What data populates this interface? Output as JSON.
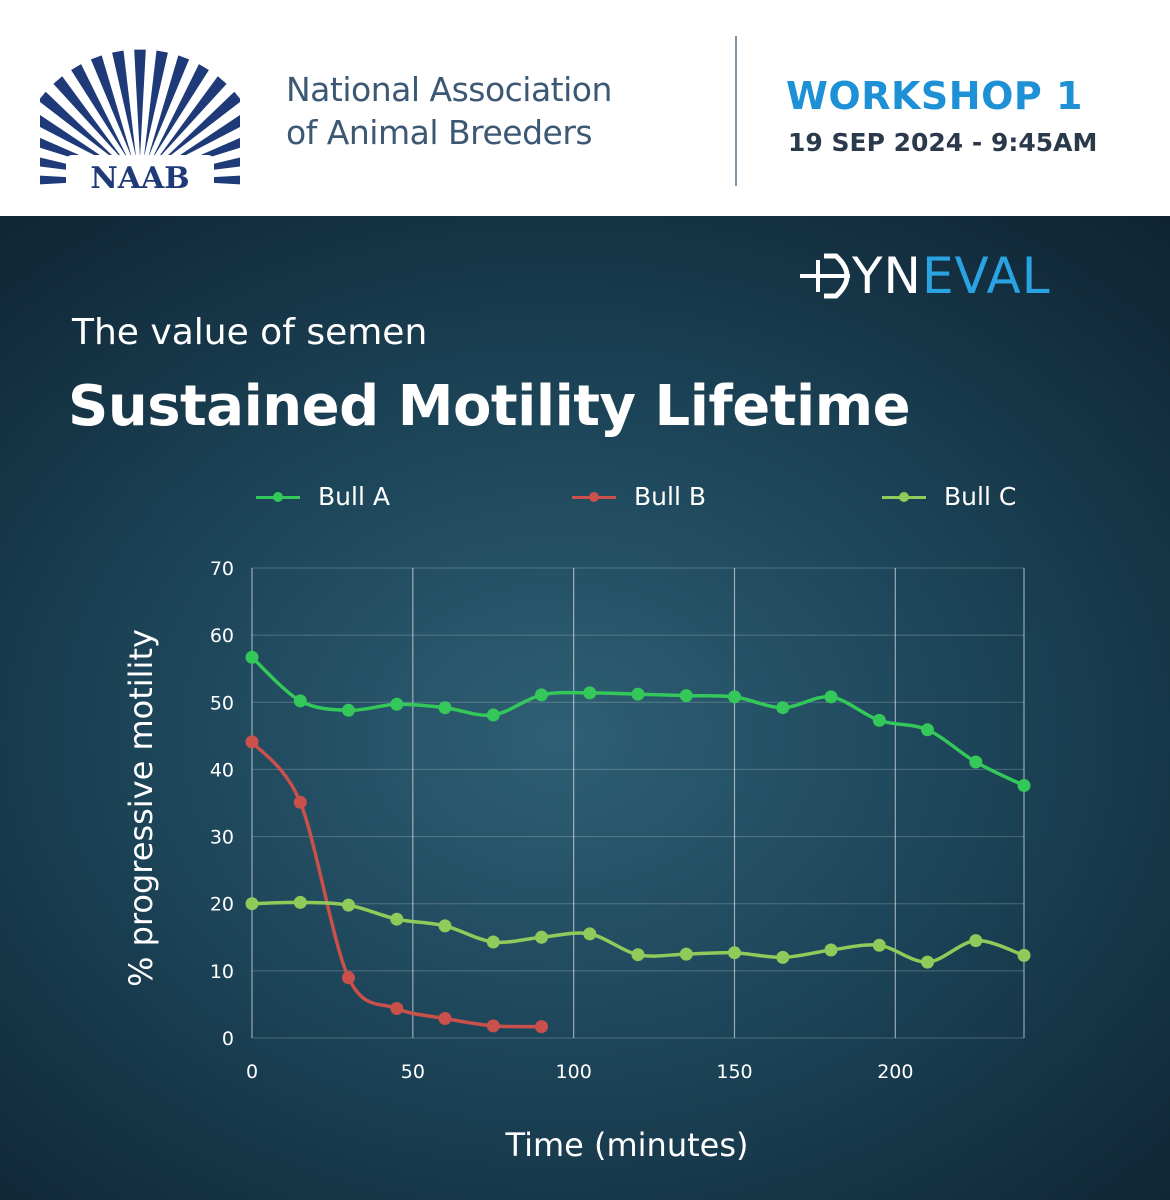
{
  "header": {
    "logo_text": "NAAB",
    "org_line1": "National Association",
    "org_line2": "of Animal Breeders",
    "workshop_title": "WORKSHOP 1",
    "workshop_date": "19 SEP 2024 - 9:45AM"
  },
  "brand": {
    "part1": "YN",
    "part2": "EVAL"
  },
  "title": {
    "subtitle": "The value of semen",
    "main": "Sustained Motility Lifetime"
  },
  "colors": {
    "header_blue": "#1e90d6",
    "org_text": "#3d5873",
    "bull_a": "#34c759",
    "bull_b": "#c9504b",
    "bull_c": "#8fca5a"
  },
  "chart_data": {
    "type": "line",
    "xlabel": "Time (minutes)",
    "ylabel": "% progressive motility",
    "xlim": [
      0,
      240
    ],
    "ylim": [
      0,
      70
    ],
    "xticks": [
      0,
      50,
      100,
      150,
      200
    ],
    "yticks": [
      0,
      10,
      20,
      30,
      40,
      50,
      60,
      70
    ],
    "grid": "vertical",
    "legend_position": "top",
    "series": [
      {
        "name": "Bull A",
        "color": "#34c759",
        "x": [
          0,
          15,
          30,
          45,
          60,
          75,
          90,
          105,
          120,
          135,
          150,
          165,
          180,
          195,
          210,
          225,
          240
        ],
        "y": [
          56.7,
          50.2,
          48.8,
          49.7,
          49.2,
          48.1,
          51.1,
          51.4,
          51.2,
          51.0,
          50.8,
          49.2,
          50.8,
          47.3,
          45.9,
          41.1,
          37.6
        ]
      },
      {
        "name": "Bull B",
        "color": "#c9504b",
        "x": [
          0,
          15,
          30,
          45,
          60,
          75,
          90
        ],
        "y": [
          44.1,
          35.1,
          9.0,
          4.4,
          2.9,
          1.8,
          1.7
        ]
      },
      {
        "name": "Bull C",
        "color": "#8fca5a",
        "x": [
          0,
          15,
          30,
          45,
          60,
          75,
          90,
          105,
          120,
          135,
          150,
          165,
          180,
          195,
          210,
          225,
          240
        ],
        "y": [
          20.0,
          20.2,
          19.8,
          17.7,
          16.7,
          14.3,
          15.0,
          15.5,
          12.4,
          12.5,
          12.7,
          12.0,
          13.1,
          13.8,
          11.3,
          14.5,
          12.3
        ]
      }
    ]
  }
}
